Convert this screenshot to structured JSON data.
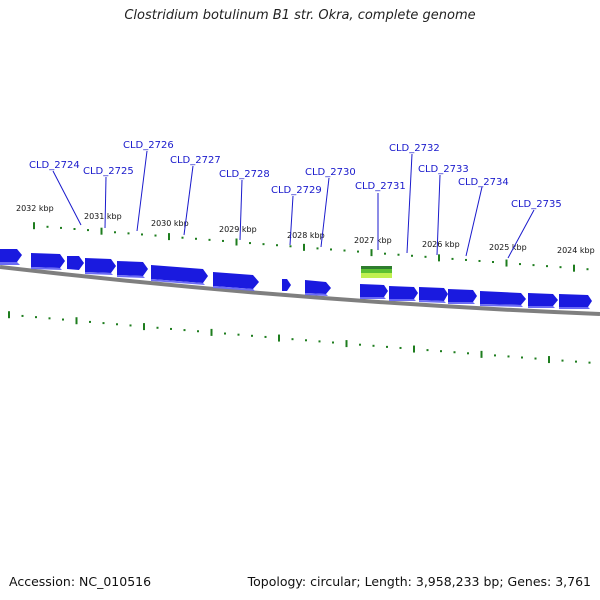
{
  "title": "Clostridium botulinum B1 str. Okra, complete genome",
  "footer": {
    "accession": "Accession: NC_010516",
    "summary": "Topology: circular; Length: 3,958,233 bp; Genes: 3,761"
  },
  "colors": {
    "gene_fill": "#1a1adf",
    "gene_shadow": "#5a5af0",
    "backbone": "#808080",
    "tick": "#1e7d1e",
    "label": "#1a1acc",
    "feature_top": "#2e8b2e",
    "feature_bottom": "#b8f04a"
  },
  "kbp_ticks": [
    "2032 kbp",
    "2031 kbp",
    "2030 kbp",
    "2029 kbp",
    "2028 kbp",
    "2027 kbp",
    "2026 kbp",
    "2025 kbp",
    "2024 kbp"
  ],
  "genes": [
    "CLD_2724",
    "CLD_2725",
    "CLD_2726",
    "CLD_2727",
    "CLD_2728",
    "CLD_2729",
    "CLD_2730",
    "CLD_2731",
    "CLD_2732",
    "CLD_2733",
    "CLD_2734",
    "CLD_2735"
  ]
}
